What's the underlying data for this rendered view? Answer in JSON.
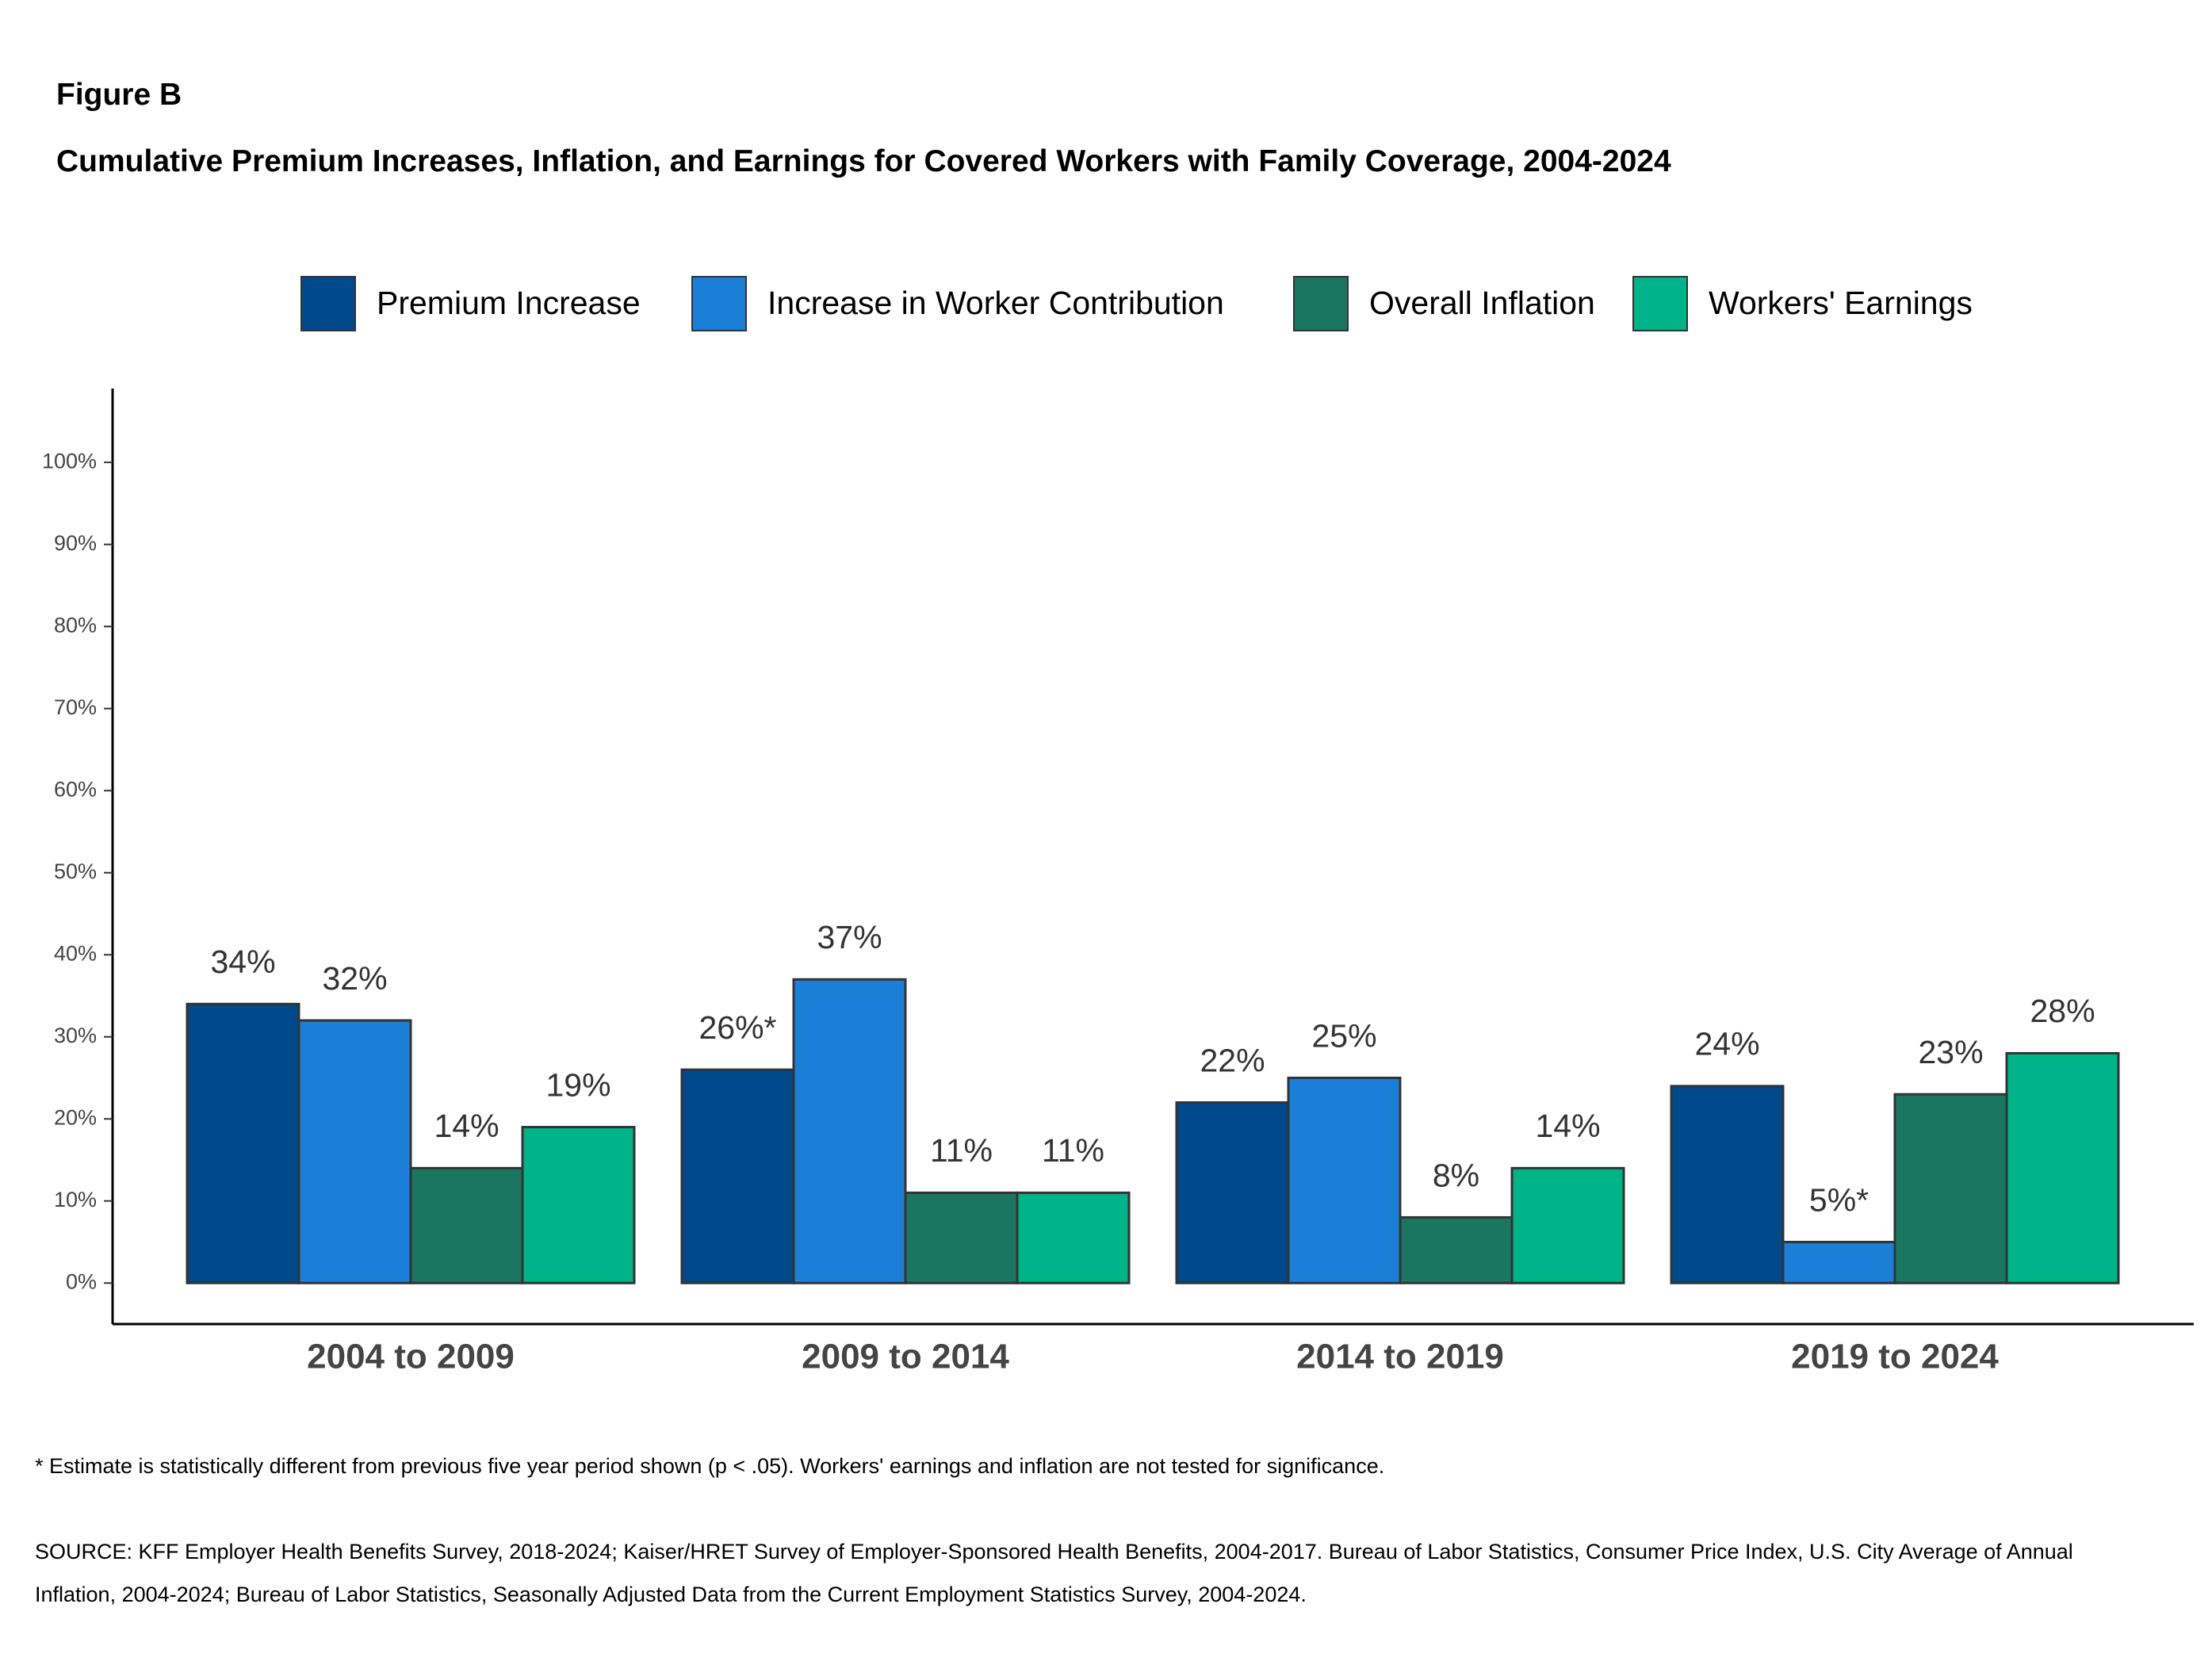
{
  "chart_data": {
    "type": "bar",
    "label": "Figure B",
    "title": "Cumulative Premium Increases, Inflation, and Earnings for Covered Workers with Family Coverage, 2004-2024",
    "categories": [
      "2004 to 2009",
      "2009 to 2014",
      "2014 to 2019",
      "2019 to 2024"
    ],
    "series": [
      {
        "name": "Premium Increase",
        "color": "#00498a",
        "values": [
          34,
          26,
          22,
          24
        ],
        "value_labels": [
          "34%",
          "26%*",
          "22%",
          "24%"
        ]
      },
      {
        "name": "Increase in Worker Contribution",
        "color": "#1b7fd8",
        "values": [
          32,
          37,
          25,
          5
        ],
        "value_labels": [
          "32%",
          "37%",
          "25%",
          "5%*"
        ]
      },
      {
        "name": "Overall Inflation",
        "color": "#1b7661",
        "values": [
          14,
          11,
          8,
          23
        ],
        "value_labels": [
          "14%",
          "11%",
          "8%",
          "23%"
        ]
      },
      {
        "name": "Workers' Earnings",
        "color": "#00b388",
        "values": [
          19,
          11,
          14,
          28
        ],
        "value_labels": [
          "19%",
          "11%",
          "14%",
          "28%"
        ]
      }
    ],
    "ylim": [
      -5,
      109
    ],
    "yticks": [
      {
        "value": 0,
        "label": "0%"
      },
      {
        "value": 10,
        "label": "10%"
      },
      {
        "value": 20,
        "label": "20%"
      },
      {
        "value": 30,
        "label": "30%"
      },
      {
        "value": 40,
        "label": "40%"
      },
      {
        "value": 50,
        "label": "50%"
      },
      {
        "value": 60,
        "label": "60%"
      },
      {
        "value": 70,
        "label": "70%"
      },
      {
        "value": 80,
        "label": "80%"
      },
      {
        "value": 90,
        "label": "90%"
      },
      {
        "value": 100,
        "label": "100%"
      }
    ],
    "legend": "top",
    "note": "* Estimate is statistically different from previous five year period shown (p < .05). Workers' earnings and inflation are not tested for significance.",
    "source": "SOURCE: KFF Employer Health Benefits Survey, 2018-2024; Kaiser/HRET Survey of Employer-Sponsored Health Benefits, 2004-2017. Bureau of Labor Statistics, Consumer Price Index, U.S. City Average of Annual Inflation, 2004-2024; Bureau of Labor Statistics, Seasonally Adjusted Data from the Current Employment Statistics Survey, 2004-2024."
  }
}
